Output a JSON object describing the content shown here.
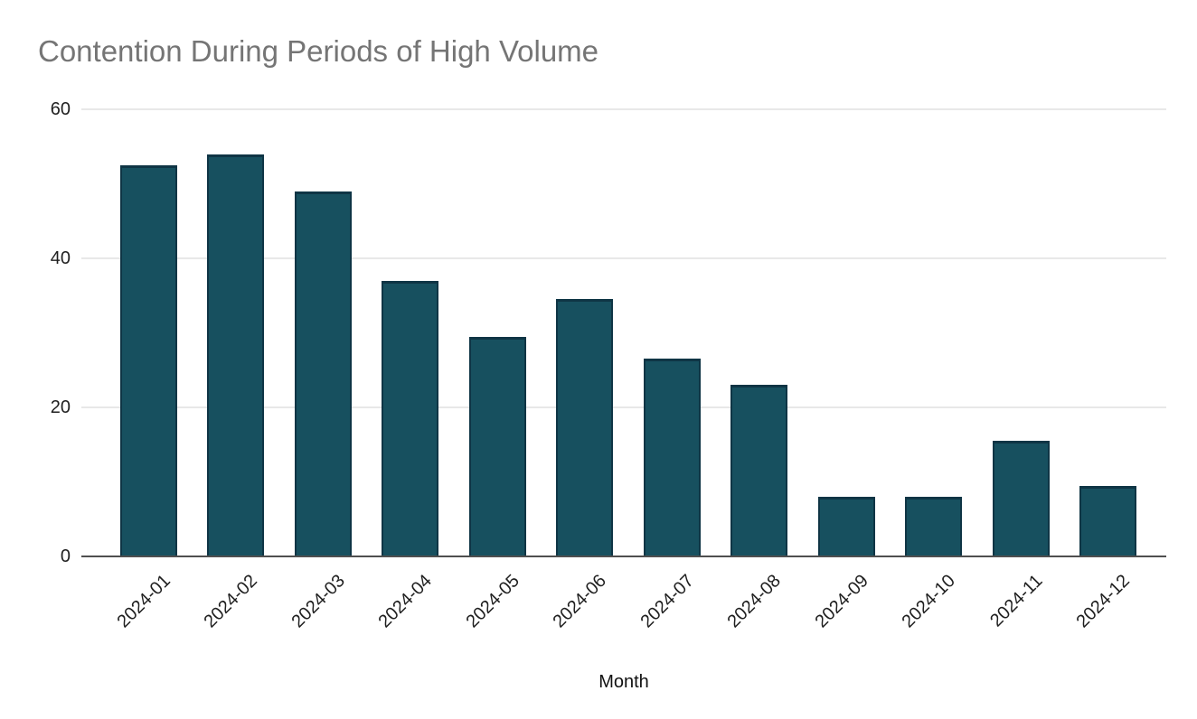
{
  "title": "Contention During Periods of High Volume",
  "chart_data": {
    "type": "bar",
    "title": "Contention During Periods of High Volume",
    "xlabel": "Month",
    "ylabel": "",
    "categories": [
      "2024-01",
      "2024-02",
      "2024-03",
      "2024-04",
      "2024-05",
      "2024-06",
      "2024-07",
      "2024-08",
      "2024-09",
      "2024-10",
      "2024-11",
      "2024-12"
    ],
    "values": [
      52.5,
      54,
      49,
      37,
      29.5,
      34.5,
      26.5,
      23,
      8,
      8,
      15.5,
      9.5
    ],
    "ylim": [
      0,
      60
    ],
    "yticks": [
      0,
      20,
      40,
      60
    ],
    "grid": true,
    "legend": false,
    "colors": {
      "bar_fill": "#17505f",
      "bar_edge": "#0f3545",
      "title_text": "#757575",
      "axis_text": "#1f1f1f",
      "gridline": "#e8e8e8",
      "baseline": "#4f4f4f"
    }
  }
}
